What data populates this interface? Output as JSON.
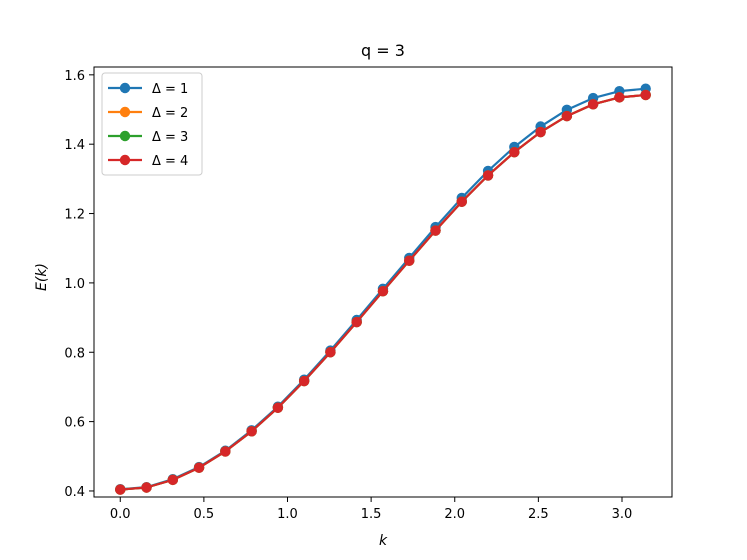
{
  "chart_data": {
    "type": "line",
    "title": "q = 3",
    "xlabel": "k",
    "ylabel": "E(k)",
    "xlim": [
      -0.157,
      3.299
    ],
    "ylim": [
      0.3826,
      1.6226
    ],
    "xticks": [
      0.0,
      0.5,
      1.0,
      1.5,
      2.0,
      2.5,
      3.0
    ],
    "xtick_labels": [
      "0.0",
      "0.5",
      "1.0",
      "1.5",
      "2.0",
      "2.5",
      "3.0"
    ],
    "yticks": [
      0.4,
      0.6,
      0.8,
      1.0,
      1.2,
      1.4,
      1.6
    ],
    "ytick_labels": [
      "0.4",
      "0.6",
      "0.8",
      "1.0",
      "1.2",
      "1.4",
      "1.6"
    ],
    "grid": false,
    "legend_position": "top-left",
    "x": [
      0.0,
      0.1571,
      0.3142,
      0.4712,
      0.6283,
      0.7854,
      0.9425,
      1.0996,
      1.2566,
      1.4137,
      1.5708,
      1.7279,
      1.885,
      2.042,
      2.1991,
      2.3562,
      2.5133,
      2.6704,
      2.8274,
      2.9845,
      3.1416
    ],
    "series": [
      {
        "name": "Δ = 1",
        "color": "#1f77b4",
        "values": [
          0.405,
          0.411,
          0.434,
          0.469,
          0.516,
          0.575,
          0.643,
          0.721,
          0.805,
          0.893,
          0.983,
          1.072,
          1.161,
          1.245,
          1.323,
          1.392,
          1.451,
          1.499,
          1.533,
          1.553,
          1.56
        ]
      },
      {
        "name": "Δ = 2",
        "color": "#ff7f0e",
        "values": [
          0.404,
          0.41,
          0.432,
          0.467,
          0.514,
          0.572,
          0.64,
          0.717,
          0.8,
          0.887,
          0.976,
          1.064,
          1.151,
          1.234,
          1.31,
          1.377,
          1.435,
          1.481,
          1.515,
          1.535,
          1.542
        ]
      },
      {
        "name": "Δ = 3",
        "color": "#2ca02c",
        "values": [
          0.404,
          0.41,
          0.432,
          0.467,
          0.514,
          0.572,
          0.64,
          0.717,
          0.8,
          0.887,
          0.976,
          1.064,
          1.151,
          1.234,
          1.31,
          1.377,
          1.435,
          1.481,
          1.515,
          1.535,
          1.542
        ]
      },
      {
        "name": "Δ = 4",
        "color": "#d62728",
        "values": [
          0.404,
          0.41,
          0.432,
          0.467,
          0.514,
          0.572,
          0.64,
          0.717,
          0.8,
          0.887,
          0.976,
          1.064,
          1.151,
          1.234,
          1.31,
          1.377,
          1.435,
          1.481,
          1.515,
          1.535,
          1.542
        ]
      }
    ]
  }
}
